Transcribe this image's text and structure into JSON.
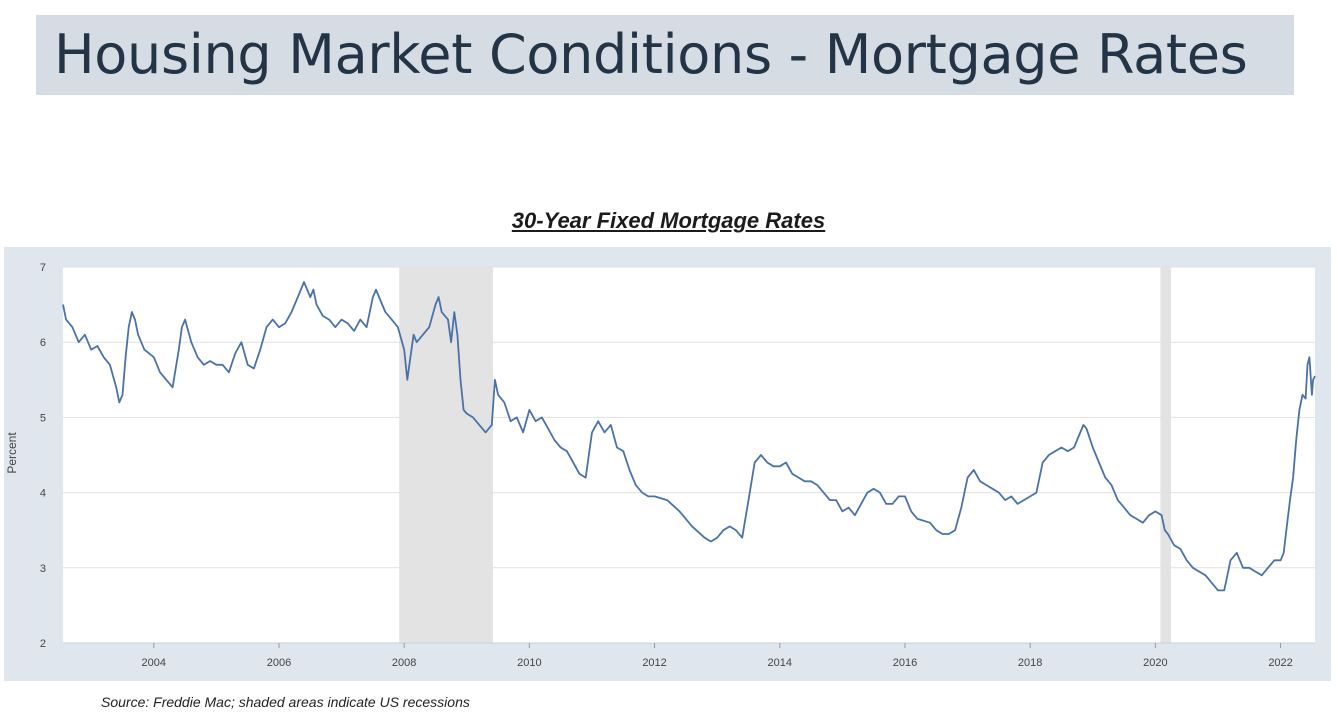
{
  "page": {
    "title": "Housing Market Conditions - Mortgage Rates"
  },
  "source_note": "Source: Freddie Mac; shaded areas indicate US recessions",
  "chart_data": {
    "type": "line",
    "title": "30-Year Fixed Mortgage Rates",
    "xlabel": "",
    "ylabel": "Percent",
    "xlim": [
      2002.55,
      2022.55
    ],
    "ylim": [
      2,
      7
    ],
    "x_ticks": [
      2004,
      2006,
      2008,
      2010,
      2012,
      2014,
      2016,
      2018,
      2020,
      2022
    ],
    "x_tick_labels": [
      "2004",
      "2006",
      "2008",
      "2010",
      "2012",
      "2014",
      "2016",
      "2018",
      "2020",
      "2022"
    ],
    "y_ticks": [
      2,
      3,
      4,
      5,
      6,
      7
    ],
    "y_tick_labels": [
      "2",
      "3",
      "4",
      "5",
      "6",
      "7"
    ],
    "grid": true,
    "recessions": [
      {
        "start": 2007.92,
        "end": 2009.42
      },
      {
        "start": 2020.08,
        "end": 2020.25
      }
    ],
    "colors": {
      "line": "#4a72a8",
      "recession": "#e3e3e3",
      "panel": "#dfe6ee",
      "plot": "#ffffff",
      "grid": "#e1e1e1"
    },
    "series": [
      {
        "name": "30-Year Fixed Mortgage Rate",
        "x": [
          2002.55,
          2002.6,
          2002.7,
          2002.8,
          2002.9,
          2003.0,
          2003.1,
          2003.2,
          2003.3,
          2003.4,
          2003.45,
          2003.5,
          2003.55,
          2003.6,
          2003.65,
          2003.7,
          2003.75,
          2003.85,
          2004.0,
          2004.1,
          2004.2,
          2004.3,
          2004.4,
          2004.45,
          2004.5,
          2004.6,
          2004.7,
          2004.8,
          2004.9,
          2005.0,
          2005.1,
          2005.2,
          2005.3,
          2005.4,
          2005.5,
          2005.6,
          2005.7,
          2005.8,
          2005.9,
          2006.0,
          2006.1,
          2006.2,
          2006.3,
          2006.4,
          2006.5,
          2006.55,
          2006.6,
          2006.7,
          2006.8,
          2006.9,
          2007.0,
          2007.1,
          2007.2,
          2007.3,
          2007.4,
          2007.5,
          2007.55,
          2007.6,
          2007.7,
          2007.8,
          2007.9,
          2008.0,
          2008.05,
          2008.1,
          2008.15,
          2008.2,
          2008.3,
          2008.4,
          2008.5,
          2008.55,
          2008.6,
          2008.7,
          2008.75,
          2008.8,
          2008.85,
          2008.9,
          2008.95,
          2009.0,
          2009.1,
          2009.2,
          2009.3,
          2009.35,
          2009.4,
          2009.45,
          2009.5,
          2009.6,
          2009.7,
          2009.8,
          2009.9,
          2010.0,
          2010.1,
          2010.2,
          2010.3,
          2010.4,
          2010.5,
          2010.6,
          2010.7,
          2010.8,
          2010.9,
          2011.0,
          2011.1,
          2011.2,
          2011.3,
          2011.4,
          2011.5,
          2011.6,
          2011.7,
          2011.8,
          2011.9,
          2012.0,
          2012.2,
          2012.4,
          2012.6,
          2012.8,
          2012.9,
          2013.0,
          2013.1,
          2013.2,
          2013.3,
          2013.4,
          2013.5,
          2013.6,
          2013.7,
          2013.8,
          2013.9,
          2014.0,
          2014.1,
          2014.2,
          2014.3,
          2014.4,
          2014.5,
          2014.6,
          2014.8,
          2014.9,
          2015.0,
          2015.1,
          2015.2,
          2015.3,
          2015.4,
          2015.5,
          2015.6,
          2015.7,
          2015.8,
          2015.9,
          2016.0,
          2016.1,
          2016.2,
          2016.4,
          2016.5,
          2016.6,
          2016.7,
          2016.8,
          2016.9,
          2017.0,
          2017.1,
          2017.2,
          2017.3,
          2017.4,
          2017.5,
          2017.6,
          2017.7,
          2017.8,
          2017.9,
          2018.0,
          2018.1,
          2018.2,
          2018.3,
          2018.4,
          2018.5,
          2018.6,
          2018.7,
          2018.8,
          2018.85,
          2018.9,
          2019.0,
          2019.1,
          2019.2,
          2019.3,
          2019.4,
          2019.5,
          2019.6,
          2019.7,
          2019.8,
          2019.9,
          2020.0,
          2020.1,
          2020.15,
          2020.2,
          2020.3,
          2020.4,
          2020.5,
          2020.6,
          2020.7,
          2020.8,
          2020.9,
          2021.0,
          2021.1,
          2021.15,
          2021.2,
          2021.3,
          2021.4,
          2021.5,
          2021.6,
          2021.7,
          2021.8,
          2021.9,
          2022.0,
          2022.05,
          2022.1,
          2022.15,
          2022.2,
          2022.25,
          2022.3,
          2022.35,
          2022.4,
          2022.43,
          2022.46,
          2022.5,
          2022.52,
          2022.55
        ],
        "y": [
          6.5,
          6.3,
          6.2,
          6.0,
          6.1,
          5.9,
          5.95,
          5.8,
          5.7,
          5.4,
          5.2,
          5.3,
          5.8,
          6.2,
          6.4,
          6.3,
          6.1,
          5.9,
          5.8,
          5.6,
          5.5,
          5.4,
          5.9,
          6.2,
          6.3,
          6.0,
          5.8,
          5.7,
          5.75,
          5.7,
          5.7,
          5.6,
          5.85,
          6.0,
          5.7,
          5.65,
          5.9,
          6.2,
          6.3,
          6.2,
          6.25,
          6.4,
          6.6,
          6.8,
          6.6,
          6.7,
          6.5,
          6.35,
          6.3,
          6.2,
          6.3,
          6.25,
          6.15,
          6.3,
          6.2,
          6.6,
          6.7,
          6.6,
          6.4,
          6.3,
          6.2,
          5.9,
          5.5,
          5.8,
          6.1,
          6.0,
          6.1,
          6.2,
          6.5,
          6.6,
          6.4,
          6.3,
          6.0,
          6.4,
          6.1,
          5.5,
          5.1,
          5.05,
          5.0,
          4.9,
          4.8,
          4.85,
          4.9,
          5.5,
          5.3,
          5.2,
          4.95,
          5.0,
          4.8,
          5.1,
          4.95,
          5.0,
          4.85,
          4.7,
          4.6,
          4.55,
          4.4,
          4.25,
          4.2,
          4.8,
          4.95,
          4.8,
          4.9,
          4.6,
          4.55,
          4.3,
          4.1,
          4.0,
          3.95,
          3.95,
          3.9,
          3.75,
          3.55,
          3.4,
          3.35,
          3.4,
          3.5,
          3.55,
          3.5,
          3.4,
          3.9,
          4.4,
          4.5,
          4.4,
          4.35,
          4.35,
          4.4,
          4.25,
          4.2,
          4.15,
          4.15,
          4.1,
          3.9,
          3.9,
          3.75,
          3.8,
          3.7,
          3.85,
          4.0,
          4.05,
          4.0,
          3.85,
          3.85,
          3.95,
          3.95,
          3.75,
          3.65,
          3.6,
          3.5,
          3.45,
          3.45,
          3.5,
          3.8,
          4.2,
          4.3,
          4.15,
          4.1,
          4.05,
          4.0,
          3.9,
          3.95,
          3.85,
          3.9,
          3.95,
          4.0,
          4.4,
          4.5,
          4.55,
          4.6,
          4.55,
          4.6,
          4.8,
          4.9,
          4.85,
          4.6,
          4.4,
          4.2,
          4.1,
          3.9,
          3.8,
          3.7,
          3.65,
          3.6,
          3.7,
          3.75,
          3.7,
          3.5,
          3.45,
          3.3,
          3.25,
          3.1,
          3.0,
          2.95,
          2.9,
          2.8,
          2.7,
          2.7,
          2.9,
          3.1,
          3.2,
          3.0,
          3.0,
          2.95,
          2.9,
          3.0,
          3.1,
          3.1,
          3.2,
          3.55,
          3.9,
          4.2,
          4.7,
          5.1,
          5.3,
          5.25,
          5.7,
          5.8,
          5.3,
          5.5,
          5.55
        ]
      }
    ]
  }
}
